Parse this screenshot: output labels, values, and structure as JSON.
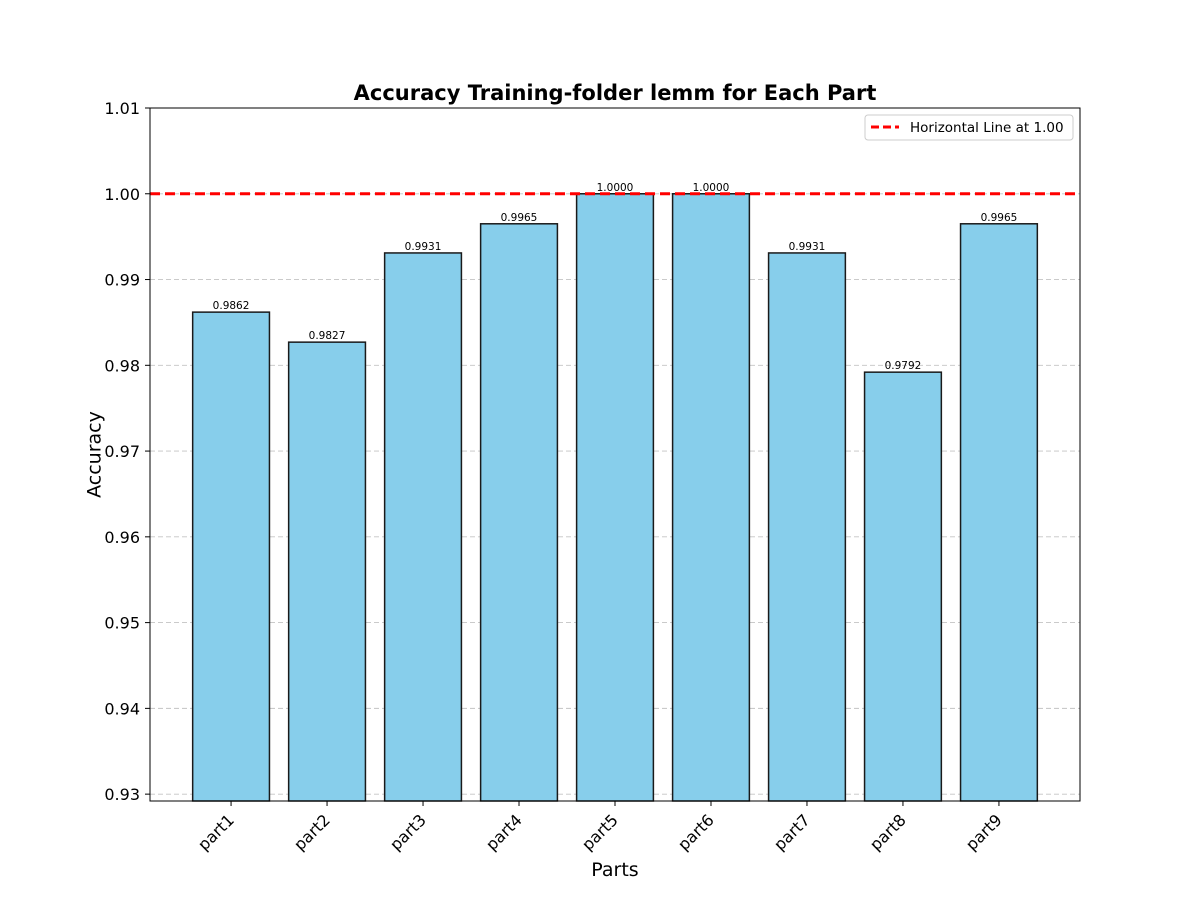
{
  "chart_data": {
    "type": "bar",
    "title": "Accuracy Training-folder lemm for Each Part",
    "xlabel": "Parts",
    "ylabel": "Accuracy",
    "categories": [
      "part1",
      "part2",
      "part3",
      "part4",
      "part5",
      "part6",
      "part7",
      "part8",
      "part9"
    ],
    "values": [
      0.9862,
      0.9827,
      0.9931,
      0.9965,
      1.0,
      1.0,
      0.9931,
      0.9792,
      0.9965
    ],
    "value_labels": [
      "0.9862",
      "0.9827",
      "0.9931",
      "0.9965",
      "1.0000",
      "1.0000",
      "0.9931",
      "0.9792",
      "0.9965"
    ],
    "ylim": [
      0.9292,
      1.01
    ],
    "yticks": [
      0.93,
      0.94,
      0.95,
      0.96,
      0.97,
      0.98,
      0.99,
      1.0,
      1.01
    ],
    "ytick_labels": [
      "0.93",
      "0.94",
      "0.95",
      "0.96",
      "0.97",
      "0.98",
      "0.99",
      "1.00",
      "1.01"
    ],
    "grid": "horizontal dashed",
    "bar_color": "#87ceeb",
    "bar_edge_color": "#1a1a1a",
    "reference_line": {
      "value": 1.0,
      "color": "#ff0000",
      "style": "dashed",
      "label": "Horizontal Line at 1.00"
    },
    "legend": {
      "location": "top-right",
      "entries": [
        "Horizontal Line at 1.00"
      ]
    }
  }
}
